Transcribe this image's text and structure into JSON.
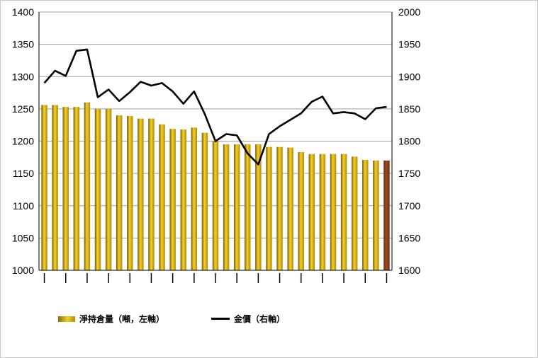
{
  "chart_data": {
    "type": "bar",
    "series": [
      {
        "name": "淨持倉量（噸，左軸）",
        "kind": "bar",
        "axis": "left",
        "color": "#e0b818",
        "last_color": "#9c4a20",
        "values": [
          1256,
          1256,
          1253,
          1253,
          1260,
          1250,
          1250,
          1240,
          1239,
          1235,
          1235,
          1226,
          1219,
          1218,
          1221,
          1213,
          1200,
          1195,
          1195,
          1195,
          1195,
          1191,
          1191,
          1190,
          1183,
          1180,
          1180,
          1180,
          1180,
          1176,
          1171,
          1170,
          1170
        ]
      },
      {
        "name": "金價（右軸）",
        "kind": "line",
        "axis": "right",
        "color": "#000000",
        "values": [
          1890,
          1909,
          1901,
          1940,
          1942,
          1868,
          1880,
          1862,
          1876,
          1892,
          1886,
          1890,
          1877,
          1858,
          1877,
          1842,
          1800,
          1811,
          1809,
          1781,
          1764,
          1811,
          1823,
          1833,
          1843,
          1861,
          1869,
          1843,
          1845,
          1843,
          1834,
          1851,
          1853
        ]
      }
    ],
    "y_left": {
      "min": 1000,
      "max": 1400,
      "ticks": [
        "1000",
        "1050",
        "1100",
        "1150",
        "1200",
        "1250",
        "1300",
        "1350",
        "1400"
      ]
    },
    "y_right": {
      "min": 1600,
      "max": 2000,
      "ticks": [
        "1600",
        "1650",
        "1700",
        "1750",
        "1800",
        "1850",
        "1900",
        "1950",
        "2000"
      ]
    },
    "grid": "horizontal",
    "legend_position": "bottom",
    "title": "",
    "xlabel": "",
    "ylabel": ""
  },
  "legend": {
    "bar_label": "淨持倉量（噸，左軸）",
    "line_label": "金價（右軸）"
  }
}
